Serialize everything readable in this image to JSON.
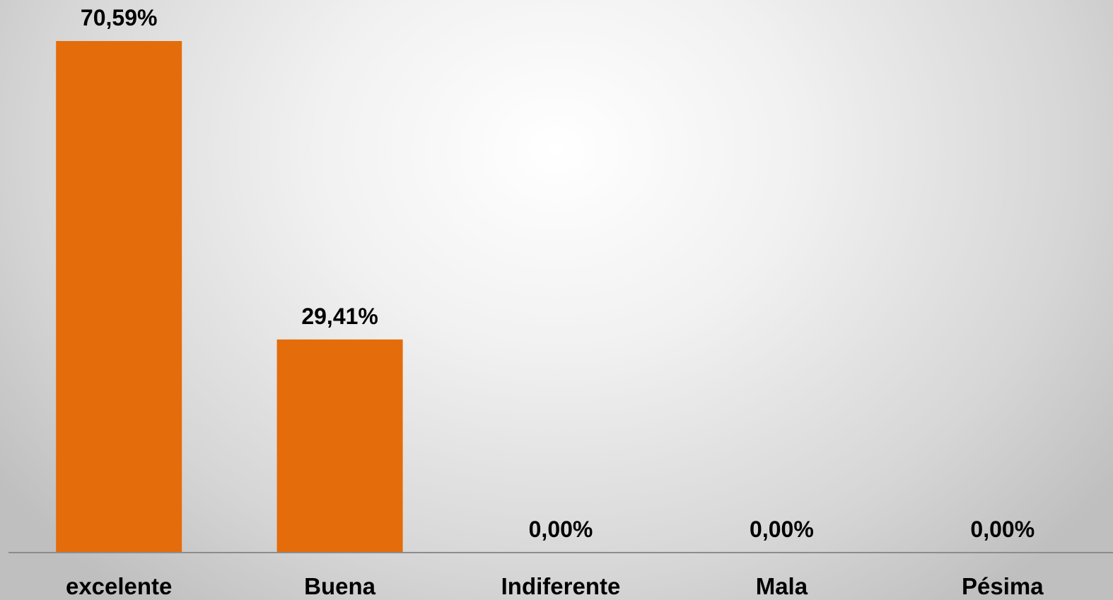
{
  "chart_data": {
    "type": "bar",
    "categories": [
      "excelente",
      "Buena",
      "Indiferente",
      "Mala",
      "Pésima"
    ],
    "values": [
      70.59,
      29.41,
      0.0,
      0.0,
      0.0
    ],
    "data_labels": [
      "70,59%",
      "29,41%",
      "0,00%",
      "0,00%",
      "0,00%"
    ],
    "unit": "%",
    "title": "",
    "xlabel": "",
    "ylabel": "",
    "ylim": [
      0,
      70.59
    ],
    "grid": false,
    "legend": "none",
    "bar_color": "#E46C0A",
    "axis_color": "#8C8C8C"
  }
}
